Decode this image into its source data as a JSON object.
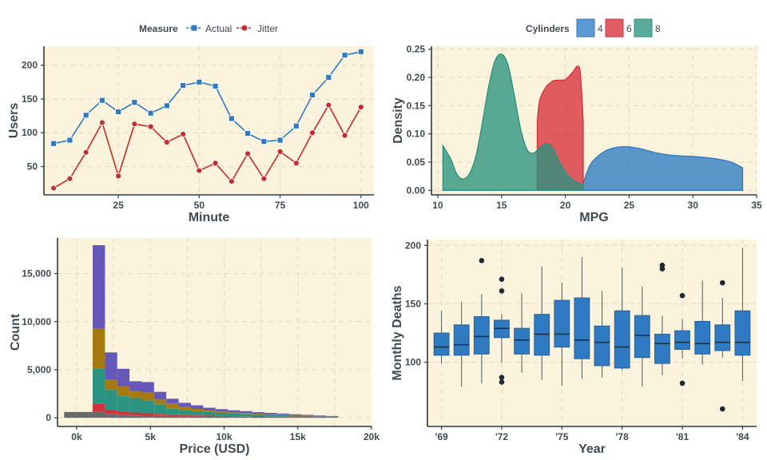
{
  "chart_data": [
    {
      "type": "line",
      "xlabel": "Minute",
      "ylabel": "Users",
      "xlim": [
        2,
        104
      ],
      "ylim": [
        8,
        228
      ],
      "xticks": [
        25,
        50,
        75,
        100
      ],
      "yticks": [
        50,
        100,
        150,
        200
      ],
      "grid": true,
      "legend": {
        "title": "Measure",
        "placement": "top"
      },
      "x": [
        5,
        10,
        15,
        20,
        25,
        30,
        35,
        40,
        45,
        50,
        55,
        60,
        65,
        70,
        75,
        80,
        85,
        90,
        95,
        100
      ],
      "series": [
        {
          "name": "Actual",
          "color": "#2e7bc4",
          "marker": "square",
          "values": [
            84,
            89,
            126,
            148,
            131,
            145,
            129,
            140,
            170,
            175,
            169,
            121,
            99,
            87,
            89,
            110,
            156,
            182,
            215,
            220
          ]
        },
        {
          "name": "Jitter",
          "color": "#cc2a2a",
          "marker": "circle",
          "values": [
            18,
            32,
            71,
            115,
            36,
            113,
            109,
            86,
            98,
            44,
            55,
            28,
            69,
            32,
            72,
            55,
            100,
            141,
            96,
            138
          ]
        }
      ]
    },
    {
      "type": "area",
      "xlabel": "MPG",
      "ylabel": "Density",
      "xlim": [
        9.5,
        35
      ],
      "ylim": [
        -0.008,
        0.255
      ],
      "xticks": [
        10,
        15,
        20,
        25,
        30,
        35
      ],
      "yticks": [
        0,
        0.05,
        0.1,
        0.15,
        0.2,
        0.25
      ],
      "ytick_labels": [
        "0.00",
        "0.05",
        "0.10",
        "0.15",
        "0.20",
        "0.25"
      ],
      "grid": true,
      "legend": {
        "title": "Cylinders",
        "placement": "top"
      },
      "series": [
        {
          "name": "4",
          "color": "#2e7bc4",
          "x": [
            21.4,
            22,
            23,
            24,
            25,
            26,
            27,
            28,
            29,
            30,
            31,
            32,
            33,
            33.9
          ],
          "values": [
            0.012,
            0.047,
            0.068,
            0.076,
            0.077,
            0.073,
            0.067,
            0.063,
            0.061,
            0.06,
            0.058,
            0.055,
            0.05,
            0.04
          ]
        },
        {
          "name": "6",
          "color": "#d7303a",
          "x": [
            17.8,
            18,
            18.5,
            19,
            19.5,
            20,
            20.5,
            21,
            21.2,
            21.4
          ],
          "values": [
            0.12,
            0.16,
            0.183,
            0.193,
            0.195,
            0.196,
            0.207,
            0.22,
            0.2,
            0.12
          ]
        },
        {
          "name": "8",
          "color": "#2a9480",
          "x": [
            10.4,
            11,
            11.5,
            12,
            12.5,
            13,
            13.5,
            14,
            14.5,
            15,
            15.5,
            16,
            16.5,
            17,
            17.5,
            18,
            18.5,
            19,
            19.5,
            20,
            20.5,
            21,
            21.4
          ],
          "values": [
            0.079,
            0.056,
            0.028,
            0.02,
            0.03,
            0.062,
            0.12,
            0.185,
            0.23,
            0.241,
            0.222,
            0.168,
            0.108,
            0.072,
            0.066,
            0.075,
            0.083,
            0.075,
            0.052,
            0.033,
            0.02,
            0.013,
            0.011
          ]
        }
      ]
    },
    {
      "type": "bar",
      "stacked": true,
      "xlabel": "Price (USD)",
      "ylabel": "Count",
      "xlim": [
        -1300,
        20000
      ],
      "ylim": [
        -900,
        18700
      ],
      "xticks": [
        0,
        5000,
        10000,
        15000,
        20000
      ],
      "xtick_labels": [
        "0k",
        "5k",
        "10k",
        "15k",
        "20k"
      ],
      "yticks": [
        0,
        5000,
        10000,
        15000
      ],
      "ytick_labels": [
        "0",
        "5,000",
        "10,000",
        "15,000"
      ],
      "grid": true,
      "bin_width": 833,
      "bin_start": 250,
      "series": [
        {
          "color": "#6a6a6a",
          "values": [
            600,
            650,
            400,
            300,
            250,
            220,
            200,
            180,
            160,
            150,
            140,
            130,
            120,
            110,
            100,
            95,
            90,
            85,
            80,
            75,
            70
          ]
        },
        {
          "color": "#d7303a",
          "values": [
            0,
            800,
            400,
            350,
            300,
            250,
            200,
            150,
            120,
            100,
            80,
            70,
            60,
            50,
            40,
            30,
            20,
            15,
            10,
            5,
            0
          ]
        },
        {
          "color": "#2a9480",
          "values": [
            0,
            3700,
            2100,
            1600,
            1500,
            1350,
            1000,
            650,
            550,
            450,
            380,
            320,
            280,
            240,
            200,
            170,
            150,
            120,
            100,
            80,
            60
          ]
        },
        {
          "color": "#a77a10",
          "values": [
            0,
            4100,
            1100,
            1050,
            700,
            850,
            500,
            500,
            280,
            230,
            150,
            130,
            110,
            95,
            80,
            70,
            60,
            50,
            40,
            30,
            20
          ]
        },
        {
          "color": "#6558b8",
          "values": [
            0,
            8700,
            2800,
            1800,
            1050,
            1050,
            800,
            500,
            450,
            370,
            300,
            250,
            220,
            200,
            170,
            150,
            120,
            100,
            80,
            60,
            40
          ]
        }
      ]
    },
    {
      "type": "box",
      "xlabel": "Year",
      "ylabel": "Monthly Deaths",
      "xlim": [
        1968.3,
        1984.7
      ],
      "ylim": [
        45,
        205
      ],
      "xticks": [
        1969,
        1972,
        1975,
        1978,
        1981,
        1984
      ],
      "xtick_labels": [
        "'69",
        "'72",
        "'75",
        "'78",
        "'81",
        "'84"
      ],
      "yticks": [
        100,
        150,
        200
      ],
      "grid": true,
      "color": "#2e7bc4",
      "boxes": [
        {
          "year": 1969,
          "min": 99,
          "q1": 106,
          "median": 113,
          "q3": 125,
          "max": 144,
          "outliers": []
        },
        {
          "year": 1970,
          "min": 79,
          "q1": 106,
          "median": 115,
          "q3": 132,
          "max": 152,
          "outliers": []
        },
        {
          "year": 1971,
          "min": 82,
          "q1": 107,
          "median": 122,
          "q3": 139,
          "max": 158,
          "outliers": [
            187
          ]
        },
        {
          "year": 1972,
          "min": 100,
          "q1": 121,
          "median": 129,
          "q3": 136,
          "max": 141,
          "outliers": [
            171,
            161,
            87,
            83
          ]
        },
        {
          "year": 1973,
          "min": 91,
          "q1": 107,
          "median": 119,
          "q3": 129,
          "max": 159,
          "outliers": []
        },
        {
          "year": 1974,
          "min": 85,
          "q1": 106,
          "median": 124,
          "q3": 141,
          "max": 182,
          "outliers": []
        },
        {
          "year": 1975,
          "min": 80,
          "q1": 113,
          "median": 124,
          "q3": 153,
          "max": 168,
          "outliers": []
        },
        {
          "year": 1976,
          "min": 86,
          "q1": 103,
          "median": 119,
          "q3": 155,
          "max": 190,
          "outliers": []
        },
        {
          "year": 1977,
          "min": 87,
          "q1": 97,
          "median": 117,
          "q3": 131,
          "max": 161,
          "outliers": []
        },
        {
          "year": 1978,
          "min": 93,
          "q1": 95,
          "median": 113,
          "q3": 144,
          "max": 181,
          "outliers": []
        },
        {
          "year": 1979,
          "min": 79,
          "q1": 104,
          "median": 123,
          "q3": 140,
          "max": 165,
          "outliers": []
        },
        {
          "year": 1980,
          "min": 89,
          "q1": 99,
          "median": 116,
          "q3": 124,
          "max": 140,
          "outliers": [
            183,
            180
          ]
        },
        {
          "year": 1981,
          "min": 103,
          "q1": 111,
          "median": 117,
          "q3": 127,
          "max": 137,
          "outliers": [
            157,
            82
          ]
        },
        {
          "year": 1982,
          "min": 98,
          "q1": 107,
          "median": 116,
          "q3": 135,
          "max": 170,
          "outliers": []
        },
        {
          "year": 1983,
          "min": 104,
          "q1": 110,
          "median": 117,
          "q3": 132,
          "max": 155,
          "outliers": [
            168,
            60
          ]
        },
        {
          "year": 1984,
          "min": 84,
          "q1": 106,
          "median": 117,
          "q3": 144,
          "max": 198,
          "outliers": []
        }
      ]
    }
  ]
}
